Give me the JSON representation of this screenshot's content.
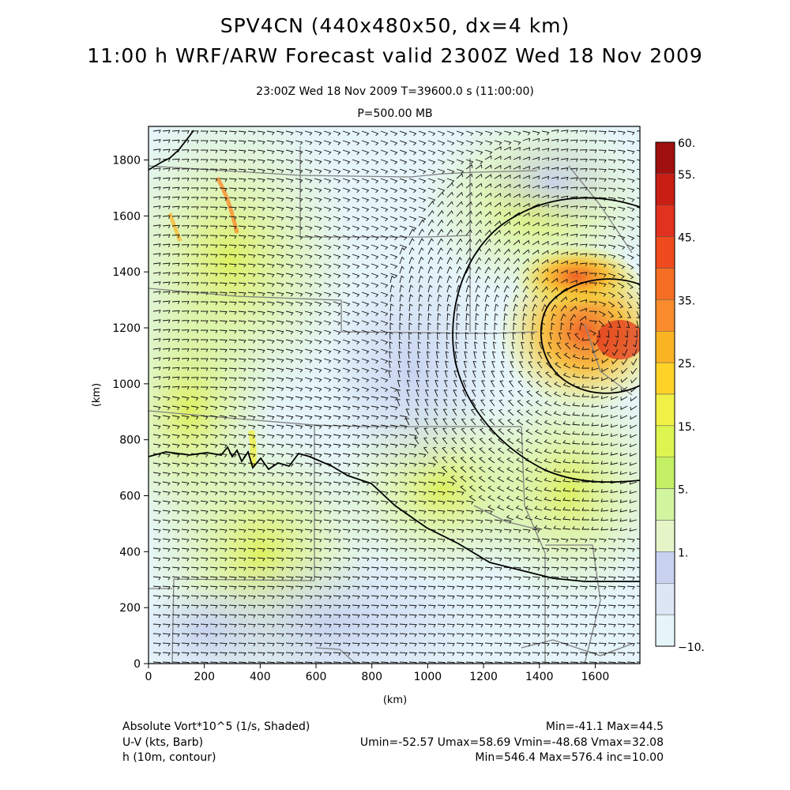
{
  "header": {
    "title_line1": "SPV4CN (440x480x50, dx=4 km)",
    "title_line2": "11:00 h WRF/ARW Forecast valid 2300Z Wed 18 Nov 2009",
    "valid_time": "23:00Z Wed 18 Nov 2009      T=39600.0 s (11:00:00)",
    "level": "P=500.00 MB"
  },
  "map": {
    "x_label": "(km)",
    "y_label": "(km)",
    "x_ticks": [
      "0",
      "200",
      "400",
      "600",
      "800",
      "1000",
      "1200",
      "1400",
      "1600"
    ],
    "y_ticks": [
      "0",
      "200",
      "400",
      "600",
      "800",
      "1000",
      "1200",
      "1400",
      "1600",
      "1800"
    ],
    "x_range_km": [
      0,
      1760
    ],
    "y_range_km": [
      0,
      1920
    ],
    "colors": {
      "background_field": "#d7eef6",
      "contour": "#000000",
      "state_borders": "#808080",
      "barbs": "#111111"
    }
  },
  "colorbar": {
    "labels": [
      "60.",
      "55.",
      "45.",
      "35.",
      "25.",
      "15.",
      "5.",
      "1.",
      "−10."
    ],
    "colors": [
      "#a01010",
      "#c81e14",
      "#e0321e",
      "#f04b1e",
      "#f56e23",
      "#fa8c2d",
      "#fab423",
      "#ffd228",
      "#f0f046",
      "#dcf550",
      "#c3f064",
      "#d2f5a0",
      "#e6f5c8",
      "#c8d2f0",
      "#dce6f5",
      "#e6f5fa"
    ]
  },
  "footer": {
    "var1_name": "Absolute Vort*10^5 (1/s, Shaded)",
    "var1_stats": "Min=-41.1 Max=44.5",
    "var2_name": "U-V (kts, Barb)",
    "var2_stats": "Umin=-52.57 Umax=58.69 Vmin=-48.68 Vmax=32.08",
    "var3_name": "h (10m, contour)",
    "var3_stats": "Min=546.4 Max=576.4 inc=10.00"
  }
}
